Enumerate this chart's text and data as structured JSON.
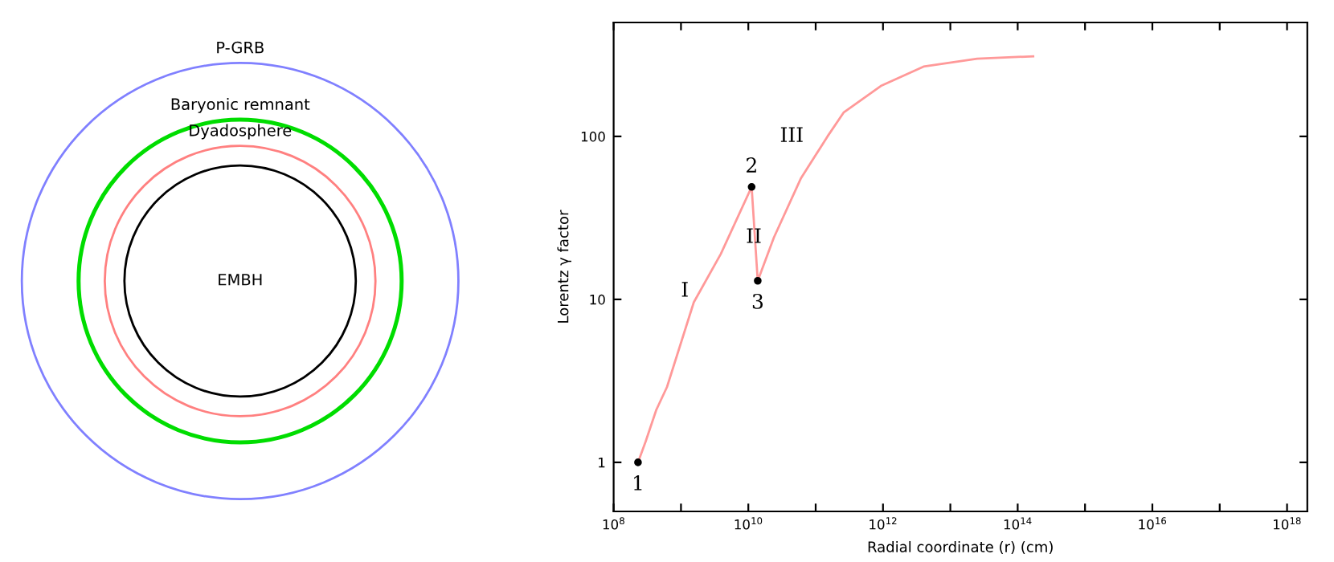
{
  "chart_data": [
    {
      "type": "other",
      "annotations": [
        "P-GRB",
        "Baryonic remnant",
        "Dyadosphere",
        "EMBH"
      ]
    },
    {
      "type": "line",
      "xlabel": "Radial coordinate (r) (cm)",
      "ylabel": "Lorentz γ factor",
      "log": "xy",
      "grid": false,
      "legend": false,
      "xlim": [
        100000000.0,
        2e+18
      ],
      "ylim": [
        0.5,
        500
      ],
      "xticks": [
        {
          "value": 100000000.0,
          "label": "10$^{8}$"
        },
        {
          "value": 1000000000.0,
          "label": null
        },
        {
          "value": 10000000000.0,
          "label": "10$^{10}$"
        },
        {
          "value": 100000000000.0,
          "label": null
        },
        {
          "value": 1000000000000.0,
          "label": "10$^{12}$"
        },
        {
          "value": 10000000000000.0,
          "label": null
        },
        {
          "value": 100000000000000.0,
          "label": "10$^{14}$"
        },
        {
          "value": 1000000000000000.0,
          "label": null
        },
        {
          "value": 1e+16,
          "label": "10$^{16}$"
        },
        {
          "value": 1e+17,
          "label": null
        },
        {
          "value": 1e+18,
          "label": "10$^{18}$"
        }
      ],
      "yticks": [
        1,
        10,
        100
      ],
      "series": [
        {
          "type": "line",
          "color": "#ff9999",
          "marker": "none",
          "line_style": "solid",
          "x": [
            230000000.0,
            300000000.0,
            430000000.0,
            620000000.0,
            1550000000.0,
            3900000000.0,
            11200000000.0,
            13800000000.0,
            24000000000.0,
            60000000000.0,
            150000000000.0,
            260000000000.0,
            930000000000.0,
            4000000000000.0,
            25000000000000.0,
            170000000000000.0
          ],
          "values": [
            1.0,
            1.35,
            2.1,
            2.9,
            9.6,
            19,
            49,
            13,
            24,
            55,
            100,
            140,
            204,
            268,
            300,
            310
          ]
        },
        {
          "type": "scatter",
          "color": "#000000",
          "marker": "circle",
          "x": [
            230000000.0,
            11200000000.0,
            13800000000.0
          ],
          "values": [
            1.0,
            49,
            13
          ]
        }
      ],
      "annotations": [
        {
          "text": "1",
          "x": 230000000.0,
          "y": 1.0
        },
        {
          "text": "2",
          "x": 11200000000.0,
          "y": 49
        },
        {
          "text": "3",
          "x": 13800000000.0,
          "y": 13
        },
        {
          "text": "I",
          "x": 1550000000.0,
          "y": 9.6
        },
        {
          "text": "II",
          "x": 24000000000.0,
          "y": 24
        },
        {
          "text": "III",
          "x": 150000000000.0,
          "y": 100
        }
      ]
    }
  ]
}
